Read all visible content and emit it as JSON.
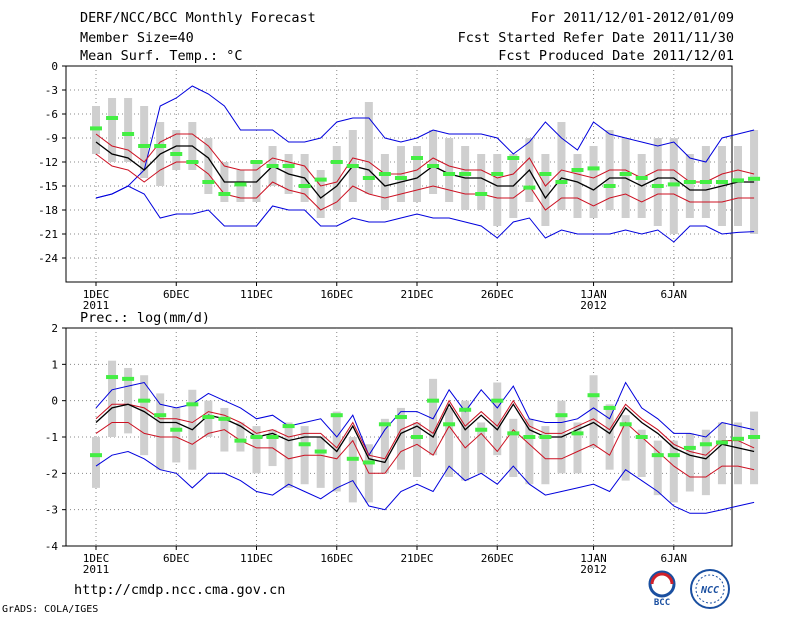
{
  "header": {
    "title": "DERF/NCC/BCC Monthly Forecast",
    "member_size": "Member Size=40",
    "variable": "Mean Surf. Temp.: °C",
    "forecast_range": "For 2011/12/01-2012/01/09",
    "started_refer_date": "Fcst Started Refer Date 2011/11/30",
    "produced_date": "Fcst Produced Date 2011/12/01"
  },
  "footer": {
    "url": "http://cmdp.ncc.cma.gov.cn",
    "grads_credit": "GrADS: COLA/IGES"
  },
  "logos": {
    "bcc": "BCC",
    "ncc": "NCC"
  },
  "colors": {
    "envelope": "#0000dd",
    "spread": "#cc1122",
    "mean": "#000000",
    "member_box": "#cfcfcf",
    "observed": "#44ee44"
  },
  "chart_data": [
    {
      "type": "line",
      "title": "Mean Surf. Temp.: °C",
      "ylim": [
        -27,
        0
      ],
      "yticks": [
        "0",
        "-3",
        "-6",
        "-9",
        "-12",
        "-15",
        "-18",
        "-21",
        "-24"
      ],
      "ytick_values": [
        0,
        -3,
        -6,
        -9,
        -12,
        -15,
        -18,
        -21,
        -24
      ],
      "x_ticks": [
        {
          "day": 1,
          "label": "1DEC",
          "sub": "2011"
        },
        {
          "day": 6,
          "label": "6DEC",
          "sub": ""
        },
        {
          "day": 11,
          "label": "11DEC",
          "sub": ""
        },
        {
          "day": 16,
          "label": "16DEC",
          "sub": ""
        },
        {
          "day": 21,
          "label": "21DEC",
          "sub": ""
        },
        {
          "day": 26,
          "label": "26DEC",
          "sub": ""
        },
        {
          "day": 32,
          "label": "1JAN",
          "sub": "2012"
        },
        {
          "day": 37,
          "label": "6JAN",
          "sub": ""
        }
      ],
      "series": [
        {
          "name": "max",
          "color": "#0000dd",
          "values": [
            -16.5,
            -16,
            -15,
            -13,
            -5,
            -4,
            -2.5,
            -3.5,
            -5,
            -8,
            -8,
            -8,
            -9.5,
            -9.5,
            -9,
            -7,
            -6.5,
            -6.5,
            -9,
            -9.5,
            -9,
            -8,
            -8.5,
            -8.5,
            -8.5,
            -9,
            -11,
            -9.5,
            -7,
            -9,
            -10.5,
            -7,
            -8.5,
            -9,
            -9.5,
            -10,
            -9.5,
            -11.5,
            -12,
            -9,
            -8.5,
            -8
          ]
        },
        {
          "name": "upper",
          "color": "#cc1122",
          "values": [
            -8.5,
            -10,
            -10.5,
            -12,
            -9.5,
            -8.5,
            -8.5,
            -10,
            -12.5,
            -13,
            -13,
            -11.5,
            -12,
            -12.5,
            -15,
            -14.5,
            -11.5,
            -12,
            -13.5,
            -13.5,
            -13,
            -11.5,
            -12.5,
            -13,
            -13,
            -14,
            -13.5,
            -11.5,
            -15,
            -13,
            -13.5,
            -14,
            -13,
            -13,
            -14,
            -13,
            -13,
            -14.5,
            -14.5,
            -13.5,
            -13,
            -13.5
          ]
        },
        {
          "name": "mean",
          "color": "#000000",
          "values": [
            -9.5,
            -11,
            -11.5,
            -13,
            -11,
            -10,
            -10,
            -11.5,
            -14.5,
            -14.5,
            -14.5,
            -12.5,
            -13.5,
            -14,
            -16.5,
            -15,
            -12.5,
            -13,
            -15,
            -14.5,
            -14,
            -12.5,
            -13.5,
            -14,
            -14,
            -15,
            -15,
            -13,
            -16.5,
            -14,
            -14.5,
            -15.5,
            -14,
            -14,
            -15,
            -14,
            -14,
            -15.5,
            -15.5,
            -15,
            -14.5,
            -14.5
          ]
        },
        {
          "name": "lower",
          "color": "#cc1122",
          "values": [
            -11,
            -12.5,
            -13,
            -14.5,
            -13,
            -12,
            -12,
            -13.5,
            -16,
            -16.5,
            -16.5,
            -14.5,
            -15.5,
            -16,
            -18,
            -17,
            -15,
            -16,
            -16.5,
            -16,
            -15.5,
            -15,
            -15.5,
            -16,
            -16,
            -16.5,
            -16.5,
            -15,
            -18,
            -16.5,
            -16.5,
            -17.5,
            -16.5,
            -16,
            -17,
            -16,
            -16,
            -17,
            -17,
            -17,
            -16.5,
            -16.5
          ]
        },
        {
          "name": "min",
          "color": "#0000dd",
          "values": [
            -16.5,
            -16,
            -15,
            -16,
            -19,
            -18.5,
            -18.5,
            -18,
            -20,
            -20,
            -20,
            -17.5,
            -18,
            -18,
            -20,
            -20,
            -19,
            -19.5,
            -19.5,
            -19,
            -18.5,
            -19,
            -19,
            -19.5,
            -20,
            -21.5,
            -19.5,
            -19,
            -21.5,
            -20.5,
            -21,
            -21,
            -21,
            -20.5,
            -21,
            -20.5,
            -22,
            -20,
            -20,
            -21,
            -20.8,
            -20.7
          ]
        },
        {
          "name": "observed",
          "color": "#44ee44",
          "values": [
            -7.8,
            -6.5,
            -8.5,
            -10,
            -10,
            -11,
            -12,
            -14.5,
            -16,
            -14.8,
            -12,
            -12.5,
            -12.5,
            -15,
            -14.2,
            -12,
            -12.5,
            -14,
            -13.5,
            -14,
            -11.5,
            -12.5,
            -13.5,
            -13.5,
            -16,
            -13.5,
            -11.5,
            -15.2,
            -13.5,
            -14.5,
            -13,
            -12.8,
            -15,
            -13.5,
            -14,
            -15,
            -14.8,
            -14.5,
            -14.5,
            -14.5,
            -14.3,
            -14.1
          ]
        }
      ],
      "member_boxes": [
        {
          "hi": -5,
          "lo": -11
        },
        {
          "hi": -4,
          "lo": -12
        },
        {
          "hi": -4,
          "lo": -12
        },
        {
          "hi": -5,
          "lo": -14
        },
        {
          "hi": -7,
          "lo": -15
        },
        {
          "hi": -8,
          "lo": -13
        },
        {
          "hi": -7,
          "lo": -13
        },
        {
          "hi": -9,
          "lo": -16
        },
        {
          "hi": -12,
          "lo": -17
        },
        {
          "hi": -13,
          "lo": -17
        },
        {
          "hi": -12,
          "lo": -17
        },
        {
          "hi": -10,
          "lo": -15
        },
        {
          "hi": -11,
          "lo": -16
        },
        {
          "hi": -11,
          "lo": -17
        },
        {
          "hi": -13,
          "lo": -19
        },
        {
          "hi": -10,
          "lo": -18
        },
        {
          "hi": -8,
          "lo": -17
        },
        {
          "hi": -4.5,
          "lo": -16
        },
        {
          "hi": -11,
          "lo": -18
        },
        {
          "hi": -10,
          "lo": -17
        },
        {
          "hi": -10,
          "lo": -17
        },
        {
          "hi": -8,
          "lo": -16
        },
        {
          "hi": -9,
          "lo": -17
        },
        {
          "hi": -10,
          "lo": -18
        },
        {
          "hi": -11,
          "lo": -18
        },
        {
          "hi": -11,
          "lo": -20
        },
        {
          "hi": -11,
          "lo": -19
        },
        {
          "hi": -9,
          "lo": -17
        },
        {
          "hi": -11,
          "lo": -20
        },
        {
          "hi": -7,
          "lo": -18
        },
        {
          "hi": -11,
          "lo": -19
        },
        {
          "hi": -10,
          "lo": -19
        },
        {
          "hi": -8,
          "lo": -18
        },
        {
          "hi": -9,
          "lo": -19
        },
        {
          "hi": -11,
          "lo": -19
        },
        {
          "hi": -9,
          "lo": -20
        },
        {
          "hi": -9,
          "lo": -21
        },
        {
          "hi": -11,
          "lo": -19
        },
        {
          "hi": -10,
          "lo": -19
        },
        {
          "hi": -10,
          "lo": -20
        },
        {
          "hi": -10,
          "lo": -20
        },
        {
          "hi": -8,
          "lo": -21
        }
      ]
    },
    {
      "type": "line",
      "title": "Prec.: log(mm/d)",
      "ylim": [
        -4,
        2
      ],
      "yticks": [
        "2",
        "1",
        "0",
        "-1",
        "-2",
        "-3",
        "-4"
      ],
      "ytick_values": [
        2,
        1,
        0,
        -1,
        -2,
        -3,
        -4
      ],
      "x_ticks": [
        {
          "day": 1,
          "label": "1DEC",
          "sub": "2011"
        },
        {
          "day": 6,
          "label": "6DEC",
          "sub": ""
        },
        {
          "day": 11,
          "label": "11DEC",
          "sub": ""
        },
        {
          "day": 16,
          "label": "16DEC",
          "sub": ""
        },
        {
          "day": 21,
          "label": "21DEC",
          "sub": ""
        },
        {
          "day": 26,
          "label": "26DEC",
          "sub": ""
        },
        {
          "day": 32,
          "label": "1JAN",
          "sub": "2012"
        },
        {
          "day": 37,
          "label": "6JAN",
          "sub": ""
        }
      ],
      "series": [
        {
          "name": "max",
          "color": "#0000dd",
          "values": [
            -0.2,
            0.3,
            0.4,
            0.5,
            -0.1,
            -0.2,
            -0.1,
            0.2,
            0,
            -0.2,
            -0.5,
            -0.4,
            -0.7,
            -0.6,
            -0.5,
            -1.0,
            -0.4,
            -1.5,
            -0.8,
            -0.3,
            -0.3,
            -0.5,
            0.3,
            -0.3,
            0.3,
            -0.2,
            0.4,
            -0.5,
            -0.6,
            -0.6,
            -0.5,
            -0.2,
            -0.5,
            0.5,
            -0.2,
            -0.5,
            -0.9,
            -0.9,
            -1.0,
            -0.6,
            -0.7,
            -0.8
          ]
        },
        {
          "name": "upper",
          "color": "#cc1122",
          "values": [
            -0.5,
            -0.1,
            -0.1,
            -0.2,
            -0.5,
            -0.5,
            -0.6,
            -0.3,
            -0.4,
            -0.6,
            -0.9,
            -0.8,
            -1.0,
            -0.9,
            -0.9,
            -1.3,
            -0.6,
            -1.5,
            -1.6,
            -0.8,
            -0.6,
            -0.9,
            0,
            -0.7,
            -0.3,
            -0.7,
            0,
            -0.7,
            -0.9,
            -0.9,
            -0.7,
            -0.5,
            -0.8,
            -0.1,
            -0.5,
            -0.8,
            -1.2,
            -1.4,
            -1.5,
            -1.1,
            -1.1,
            -1.3
          ]
        },
        {
          "name": "mean",
          "color": "#000000",
          "values": [
            -0.6,
            -0.2,
            -0.1,
            -0.3,
            -0.6,
            -0.6,
            -0.8,
            -0.4,
            -0.5,
            -0.7,
            -1.0,
            -0.9,
            -1.1,
            -1.0,
            -1.0,
            -1.4,
            -0.7,
            -1.6,
            -1.7,
            -0.9,
            -0.7,
            -1.0,
            -0.1,
            -0.8,
            -0.4,
            -0.8,
            -0.1,
            -0.8,
            -1.0,
            -1.0,
            -0.8,
            -0.6,
            -0.9,
            -0.2,
            -0.6,
            -0.9,
            -1.3,
            -1.5,
            -1.6,
            -1.2,
            -1.3,
            -1.4
          ]
        },
        {
          "name": "lower",
          "color": "#cc1122",
          "values": [
            -0.9,
            -0.6,
            -0.6,
            -0.9,
            -1.0,
            -1.0,
            -1.2,
            -0.9,
            -0.8,
            -1.1,
            -1.3,
            -1.3,
            -1.6,
            -1.5,
            -1.5,
            -1.6,
            -1.1,
            -2.0,
            -2.0,
            -1.4,
            -1.2,
            -1.5,
            -0.7,
            -1.3,
            -0.9,
            -1.4,
            -0.8,
            -1.2,
            -1.6,
            -1.6,
            -1.4,
            -1.2,
            -1.5,
            -0.6,
            -1.0,
            -1.4,
            -1.8,
            -2.1,
            -2.1,
            -1.8,
            -1.8,
            -1.9
          ]
        },
        {
          "name": "min",
          "color": "#0000dd",
          "values": [
            -1.8,
            -1.5,
            -1.4,
            -1.6,
            -1.9,
            -2.0,
            -2.4,
            -2.0,
            -2.0,
            -2.2,
            -2.5,
            -2.6,
            -2.3,
            -2.5,
            -2.7,
            -2.4,
            -2.2,
            -2.9,
            -3.0,
            -2.5,
            -2.3,
            -2.5,
            -1.8,
            -2.2,
            -2.0,
            -2.3,
            -1.8,
            -2.3,
            -2.6,
            -2.5,
            -2.4,
            -2.3,
            -2.5,
            -1.9,
            -2.2,
            -2.5,
            -2.9,
            -3.1,
            -3.1,
            -3.0,
            -2.9,
            -2.8
          ]
        },
        {
          "name": "observed",
          "color": "#44ee44",
          "values": [
            -1.5,
            0.65,
            0.6,
            0,
            -0.4,
            -0.8,
            -0.1,
            -0.45,
            -0.5,
            -1.1,
            -1.0,
            -1.0,
            -0.7,
            -1.2,
            -1.4,
            -0.4,
            -1.6,
            -1.7,
            -0.65,
            -0.45,
            -1.0,
            0,
            -0.65,
            -0.25,
            -0.8,
            0,
            -0.9,
            -1.0,
            -1.0,
            -0.4,
            -0.9,
            0.15,
            -0.2,
            -0.65,
            -1.0,
            -1.5,
            -1.5,
            -1.3,
            -1.2,
            -1.15,
            -1.05,
            -1.0
          ]
        }
      ],
      "member_boxes": [
        {
          "hi": -1.0,
          "lo": -2.4
        },
        {
          "hi": 1.1,
          "lo": -1.0
        },
        {
          "hi": 0.9,
          "lo": -0.9
        },
        {
          "hi": 0.7,
          "lo": -1.5
        },
        {
          "hi": 0.2,
          "lo": -1.9
        },
        {
          "hi": -0.2,
          "lo": -1.7
        },
        {
          "hi": 0.3,
          "lo": -1.9
        },
        {
          "hi": 0,
          "lo": -1.0
        },
        {
          "hi": -0.2,
          "lo": -1.4
        },
        {
          "hi": -0.6,
          "lo": -1.4
        },
        {
          "hi": -0.7,
          "lo": -2.0
        },
        {
          "hi": -0.8,
          "lo": -1.8
        },
        {
          "hi": -0.6,
          "lo": -2.4
        },
        {
          "hi": -0.7,
          "lo": -2.3
        },
        {
          "hi": -1.0,
          "lo": -2.4
        },
        {
          "hi": -0.3,
          "lo": -2.5
        },
        {
          "hi": -1.0,
          "lo": -2.8
        },
        {
          "hi": -1.2,
          "lo": -2.8
        },
        {
          "hi": -0.5,
          "lo": -2.0
        },
        {
          "hi": -0.2,
          "lo": -1.9
        },
        {
          "hi": -0.6,
          "lo": -2.1
        },
        {
          "hi": 0.6,
          "lo": -1.5
        },
        {
          "hi": -0.2,
          "lo": -2.1
        },
        {
          "hi": 0,
          "lo": -2.2
        },
        {
          "hi": -0.6,
          "lo": -2.0
        },
        {
          "hi": 0.5,
          "lo": -1.5
        },
        {
          "hi": -0.5,
          "lo": -2.1
        },
        {
          "hi": -0.5,
          "lo": -2.3
        },
        {
          "hi": -0.7,
          "lo": -2.3
        },
        {
          "hi": 0,
          "lo": -2.0
        },
        {
          "hi": -0.6,
          "lo": -2.0
        },
        {
          "hi": 0.7,
          "lo": -1.3
        },
        {
          "hi": -0.1,
          "lo": -1.9
        },
        {
          "hi": -0.4,
          "lo": -2.2
        },
        {
          "hi": -0.8,
          "lo": -2.1
        },
        {
          "hi": -1.1,
          "lo": -2.6
        },
        {
          "hi": -1.1,
          "lo": -2.8
        },
        {
          "hi": -0.9,
          "lo": -2.5
        },
        {
          "hi": -0.8,
          "lo": -2.6
        },
        {
          "hi": -0.6,
          "lo": -2.3
        },
        {
          "hi": -0.6,
          "lo": -2.3
        },
        {
          "hi": -0.3,
          "lo": -2.3
        }
      ]
    }
  ]
}
